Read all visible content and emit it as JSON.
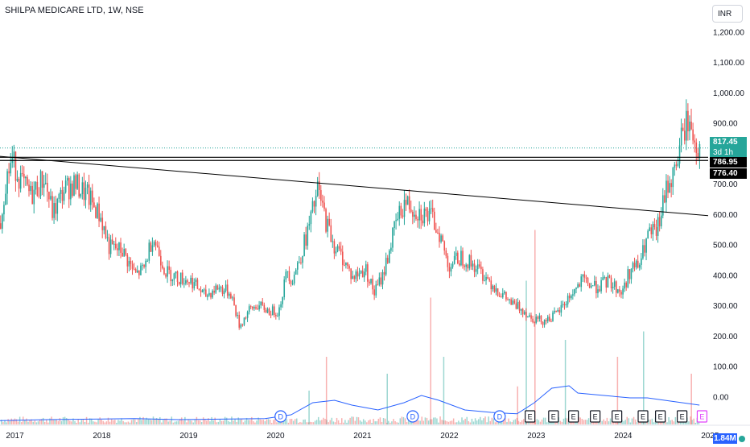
{
  "header": {
    "title": "SHILPA MEDICARE LTD, 1W, NSE",
    "currency": "INR"
  },
  "price_labels": {
    "last": "817.45",
    "countdown": "3d 1h",
    "level_1": "786.95",
    "level_2": "776.40"
  },
  "volume_label": "1.84M",
  "colors": {
    "up": "#26a69a",
    "down": "#ef5350",
    "volume_ma": "#2962ff",
    "text": "#131722",
    "grid": "#f0f3fa"
  },
  "chart_data": {
    "type": "candlestick",
    "x_ticks": [
      "2017",
      "2018",
      "2019",
      "2020",
      "2021",
      "2022",
      "2023",
      "2024",
      "2025"
    ],
    "y_ticks": [
      "1,200.00",
      "1,100.00",
      "1,000.00",
      "900.00",
      "800.00",
      "700.00",
      "600.00",
      "500.00",
      "400.00",
      "300.00",
      "200.00",
      "100.00",
      "0.00"
    ],
    "y_tick_values": [
      1200,
      1100,
      1000,
      900,
      800,
      700,
      600,
      500,
      400,
      300,
      200,
      100,
      0
    ],
    "ylim": [
      -100,
      1225
    ],
    "xlim": [
      2016.95,
      2025.1
    ],
    "price_path": [
      [
        2016.95,
        570
      ],
      [
        2017.0,
        700
      ],
      [
        2017.08,
        780
      ],
      [
        2017.2,
        700
      ],
      [
        2017.3,
        660
      ],
      [
        2017.45,
        720
      ],
      [
        2017.55,
        600
      ],
      [
        2017.68,
        680
      ],
      [
        2017.8,
        700
      ],
      [
        2017.95,
        660
      ],
      [
        2018.1,
        590
      ],
      [
        2018.2,
        490
      ],
      [
        2018.35,
        480
      ],
      [
        2018.5,
        400
      ],
      [
        2018.6,
        420
      ],
      [
        2018.7,
        530
      ],
      [
        2018.85,
        410
      ],
      [
        2019.0,
        390
      ],
      [
        2019.15,
        380
      ],
      [
        2019.3,
        330
      ],
      [
        2019.45,
        360
      ],
      [
        2019.6,
        340
      ],
      [
        2019.7,
        230
      ],
      [
        2019.8,
        280
      ],
      [
        2019.9,
        300
      ],
      [
        2020.05,
        280
      ],
      [
        2020.15,
        280
      ],
      [
        2020.25,
        420
      ],
      [
        2020.3,
        380
      ],
      [
        2020.4,
        460
      ],
      [
        2020.5,
        560
      ],
      [
        2020.6,
        680
      ],
      [
        2020.7,
        570
      ],
      [
        2020.8,
        490
      ],
      [
        2020.9,
        450
      ],
      [
        2021.0,
        390
      ],
      [
        2021.15,
        420
      ],
      [
        2021.25,
        340
      ],
      [
        2021.35,
        400
      ],
      [
        2021.5,
        570
      ],
      [
        2021.6,
        640
      ],
      [
        2021.75,
        610
      ],
      [
        2021.9,
        590
      ],
      [
        2022.0,
        540
      ],
      [
        2022.1,
        430
      ],
      [
        2022.25,
        460
      ],
      [
        2022.4,
        430
      ],
      [
        2022.55,
        390
      ],
      [
        2022.7,
        340
      ],
      [
        2022.85,
        300
      ],
      [
        2022.95,
        290
      ],
      [
        2023.05,
        260
      ],
      [
        2023.2,
        250
      ],
      [
        2023.35,
        270
      ],
      [
        2023.5,
        330
      ],
      [
        2023.65,
        380
      ],
      [
        2023.8,
        360
      ],
      [
        2023.95,
        380
      ],
      [
        2024.1,
        340
      ],
      [
        2024.2,
        420
      ],
      [
        2024.3,
        430
      ],
      [
        2024.4,
        530
      ],
      [
        2024.5,
        540
      ],
      [
        2024.55,
        600
      ],
      [
        2024.63,
        700
      ],
      [
        2024.7,
        730
      ],
      [
        2024.78,
        840
      ],
      [
        2024.85,
        910
      ],
      [
        2024.92,
        860
      ],
      [
        2024.97,
        820
      ],
      [
        2025.0,
        817.45
      ]
    ],
    "trendline": {
      "from": [
        2016.95,
        790
      ],
      "to": [
        2025.1,
        595
      ]
    },
    "horizontal_lines": [
      786.95,
      776.4
    ],
    "dotted_line": 817.45,
    "volume_spikes": [
      [
        2020.5,
        40
      ],
      [
        2020.7,
        80
      ],
      [
        2021.4,
        60
      ],
      [
        2021.9,
        150
      ],
      [
        2022.05,
        80
      ],
      [
        2022.9,
        45
      ],
      [
        2023.0,
        170
      ],
      [
        2023.1,
        230
      ],
      [
        2023.45,
        100
      ],
      [
        2024.05,
        80
      ],
      [
        2024.35,
        110
      ],
      [
        2024.9,
        60
      ]
    ],
    "volume_ma": [
      [
        2016.95,
        8
      ],
      [
        2017.5,
        10
      ],
      [
        2018.0,
        11
      ],
      [
        2018.5,
        12
      ],
      [
        2019.0,
        10
      ],
      [
        2019.5,
        11
      ],
      [
        2020.0,
        12
      ],
      [
        2020.3,
        20
      ],
      [
        2020.55,
        45
      ],
      [
        2020.8,
        50
      ],
      [
        2021.0,
        40
      ],
      [
        2021.3,
        30
      ],
      [
        2021.6,
        45
      ],
      [
        2021.8,
        60
      ],
      [
        2022.0,
        50
      ],
      [
        2022.3,
        30
      ],
      [
        2022.6,
        25
      ],
      [
        2022.9,
        22
      ],
      [
        2023.1,
        45
      ],
      [
        2023.3,
        75
      ],
      [
        2023.5,
        80
      ],
      [
        2023.6,
        65
      ],
      [
        2023.9,
        60
      ],
      [
        2024.2,
        55
      ],
      [
        2024.4,
        55
      ],
      [
        2024.6,
        50
      ],
      [
        2024.8,
        45
      ],
      [
        2025.0,
        40
      ]
    ],
    "events": [
      {
        "label": "D",
        "x": 2020.18,
        "kind": "dividend"
      },
      {
        "label": "D",
        "x": 2021.7,
        "kind": "dividend"
      },
      {
        "label": "D",
        "x": 2022.7,
        "kind": "dividend"
      },
      {
        "label": "E",
        "x": 2023.05,
        "kind": "earnings"
      },
      {
        "label": "E",
        "x": 2023.32,
        "kind": "earnings"
      },
      {
        "label": "E",
        "x": 2023.55,
        "kind": "earnings"
      },
      {
        "label": "E",
        "x": 2023.8,
        "kind": "earnings"
      },
      {
        "label": "E",
        "x": 2024.05,
        "kind": "earnings"
      },
      {
        "label": "E",
        "x": 2024.35,
        "kind": "earnings"
      },
      {
        "label": "E",
        "x": 2024.55,
        "kind": "earnings"
      },
      {
        "label": "E",
        "x": 2024.8,
        "kind": "earnings"
      },
      {
        "label": "E",
        "x": 2025.03,
        "kind": "earnings-upcoming"
      }
    ],
    "grid": false
  }
}
